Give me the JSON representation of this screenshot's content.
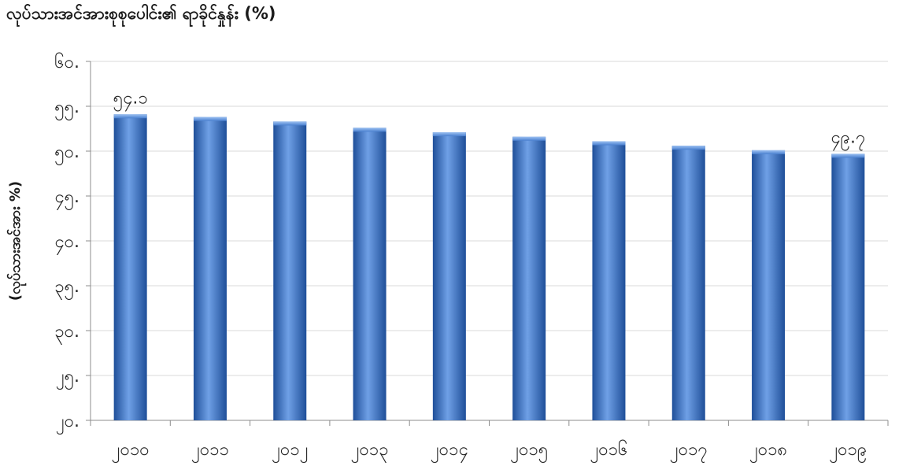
{
  "chart_data": {
    "type": "bar",
    "title": "လုပ်သားအင်အားစုစုပေါင်း၏ ရာခိုင်နှုန်း (%)",
    "xlabel": "",
    "ylabel": "(လုပ်သားအင်အား %)",
    "categories": [
      "၂၀၁၀",
      "၂၀၁၁",
      "၂၀၁၂",
      "၂၀၁၃",
      "၂၀၁၄",
      "၂၀၁၅",
      "၂၀၁၆",
      "၂၀၁၇",
      "၂၀၁၈",
      "၂၀၁၉"
    ],
    "values": [
      54.1,
      53.8,
      53.3,
      52.6,
      52.1,
      51.6,
      51.1,
      50.6,
      50.1,
      49.7
    ],
    "data_labels": [
      {
        "index": 0,
        "text": "၅၄.၁"
      },
      {
        "index": 9,
        "text": "၄၉.၇"
      }
    ],
    "ylim": [
      20,
      60
    ],
    "yticks": [
      {
        "value": 20,
        "label": "၂၀."
      },
      {
        "value": 25,
        "label": "၂၅."
      },
      {
        "value": 30,
        "label": "၃၀."
      },
      {
        "value": 35,
        "label": "၃၅."
      },
      {
        "value": 40,
        "label": "၄၀."
      },
      {
        "value": 45,
        "label": "၄၅."
      },
      {
        "value": 50,
        "label": "၅၀."
      },
      {
        "value": 55,
        "label": "၅၅."
      },
      {
        "value": 60,
        "label": "၆၀."
      }
    ],
    "grid": true,
    "bar_color": "#3a72c4",
    "bar_color_light": "#6fa0e6",
    "bar_color_dark": "#1f4f99"
  }
}
